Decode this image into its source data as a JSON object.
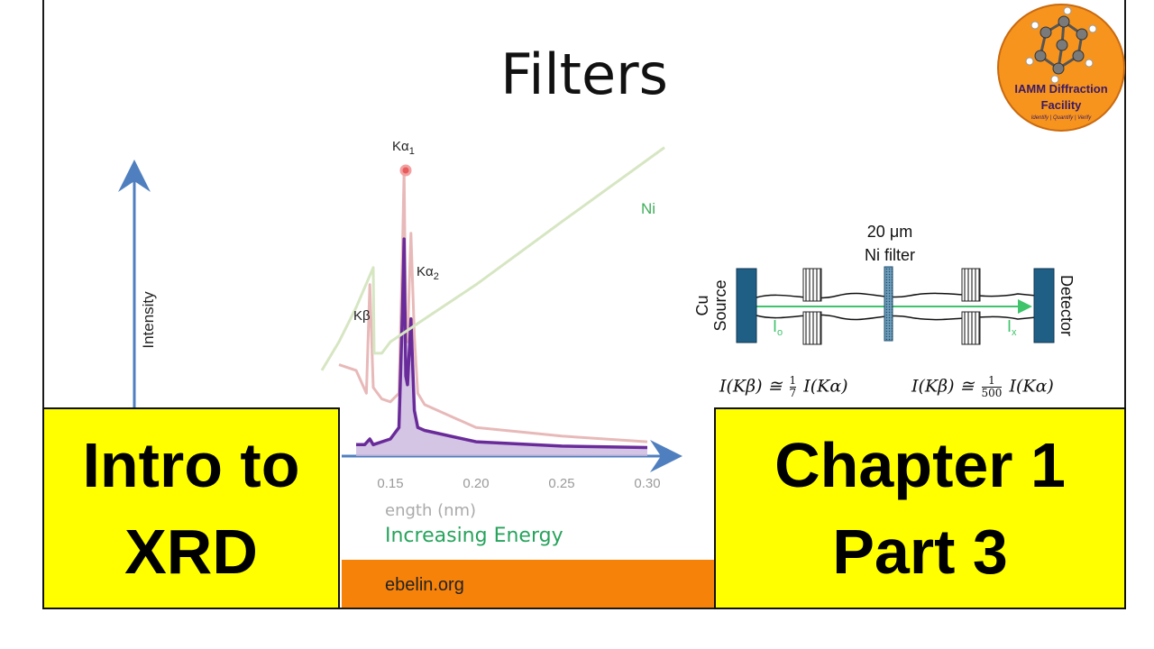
{
  "slide": {
    "title": "Filters",
    "footer_url_fragment": "ebelin.org"
  },
  "chart": {
    "y_axis_label": "Intensity",
    "x_axis_label_fragment": "ength (nm)",
    "energy_label": "Increasing Energy",
    "peak_labels": {
      "ka1": "Kα",
      "ka1_sub": "1",
      "ka2": "Kα",
      "ka2_sub": "2",
      "kb": "Kβ"
    },
    "ni_label": "Ni",
    "x_ticks": [
      "0.15",
      "0.20",
      "0.25",
      "0.30"
    ]
  },
  "chart_data": {
    "type": "line",
    "xlabel": "ength (nm)",
    "ylabel": "Intensity",
    "x_ticks": [
      0.15,
      0.2,
      0.25,
      0.3
    ],
    "series": [
      {
        "name": "",
        "color": "#e8b9b9",
        "x": [
          0.12,
          0.13,
          0.136,
          0.138,
          0.14,
          0.145,
          0.15,
          0.155,
          0.157,
          0.158,
          0.159,
          0.16,
          0.162,
          0.164,
          0.166,
          0.17,
          0.2,
          0.25,
          0.3
        ],
        "y": [
          0.32,
          0.3,
          0.22,
          0.6,
          0.24,
          0.2,
          0.19,
          0.22,
          0.7,
          1.0,
          0.45,
          0.4,
          0.78,
          0.42,
          0.22,
          0.18,
          0.1,
          0.07,
          0.05
        ]
      },
      {
        "name": "",
        "color": "#6a2b9a",
        "x": [
          0.13,
          0.135,
          0.138,
          0.14,
          0.15,
          0.155,
          0.157,
          0.158,
          0.159,
          0.16,
          0.162,
          0.164,
          0.166,
          0.17,
          0.2,
          0.25,
          0.3
        ],
        "y": [
          0.04,
          0.04,
          0.06,
          0.04,
          0.06,
          0.1,
          0.5,
          0.76,
          0.28,
          0.25,
          0.48,
          0.16,
          0.1,
          0.09,
          0.05,
          0.035,
          0.03
        ]
      },
      {
        "name": "Ni",
        "color": "#d6e6c2",
        "x": [
          0.11,
          0.12,
          0.13,
          0.14,
          0.1405,
          0.145,
          0.15,
          0.17,
          0.2,
          0.25,
          0.31
        ],
        "y": [
          0.3,
          0.4,
          0.52,
          0.66,
          0.36,
          0.36,
          0.4,
          0.48,
          0.6,
          0.82,
          1.08
        ]
      }
    ]
  },
  "diagram": {
    "filter_label_line1": "20 μm",
    "filter_label_line2": "Ni filter",
    "source_label_line1": "Cu",
    "source_label_line2": "Source",
    "detector_label": "Detector",
    "i0": "I",
    "i0_sub": "o",
    "ix": "I",
    "ix_sub": "x",
    "formula1_left": "I(Kβ) ≅",
    "formula1_num": "1",
    "formula1_den": "7",
    "formula1_right": "I(Kα)",
    "formula2_left": "I(Kβ) ≅",
    "formula2_num": "1",
    "formula2_den": "500",
    "formula2_right": "I(Kα)"
  },
  "overlay": {
    "left_box_line1": "Intro to",
    "left_box_line2": "XRD",
    "right_box_line1": "Chapter 1",
    "right_box_line2": "Part 3"
  },
  "logo": {
    "line1": "IAMM Diffraction",
    "line2": "Facility",
    "motto": "Identify | Quantify | Verify"
  },
  "colors": {
    "orange": "#f7820a",
    "yellow": "#ffff00",
    "axis_blue": "#4f7fbf",
    "beam_green": "#3fc36b",
    "filter_blue": "#1f5f86"
  }
}
